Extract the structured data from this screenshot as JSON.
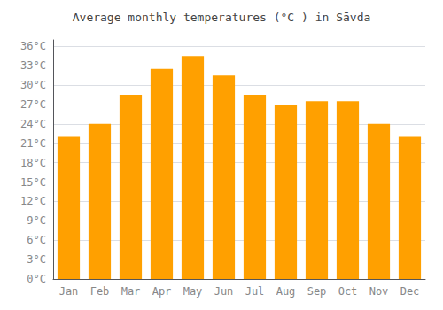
{
  "chart_data": {
    "type": "bar",
    "title": "Average monthly temperatures (°C ) in Sāvda",
    "categories": [
      "Jan",
      "Feb",
      "Mar",
      "Apr",
      "May",
      "Jun",
      "Jul",
      "Aug",
      "Sep",
      "Oct",
      "Nov",
      "Dec"
    ],
    "values": [
      22,
      24,
      28.5,
      32.5,
      34.5,
      31.5,
      28.5,
      27,
      27.5,
      27.5,
      24,
      22
    ],
    "color": "#FFA000",
    "ylim": [
      0,
      37
    ],
    "yticks": [
      {
        "value": 0,
        "label": "0°C"
      },
      {
        "value": 3,
        "label": "3°C"
      },
      {
        "value": 6,
        "label": "6°C"
      },
      {
        "value": 9,
        "label": "9°C"
      },
      {
        "value": 12,
        "label": "12°C"
      },
      {
        "value": 15,
        "label": "15°C"
      },
      {
        "value": 18,
        "label": "18°C"
      },
      {
        "value": 21,
        "label": "21°C"
      },
      {
        "value": 24,
        "label": "24°C"
      },
      {
        "value": 27,
        "label": "27°C"
      },
      {
        "value": 30,
        "label": "30°C"
      },
      {
        "value": 33,
        "label": "33°C"
      },
      {
        "value": 36,
        "label": "36°C"
      }
    ],
    "grid": true
  }
}
